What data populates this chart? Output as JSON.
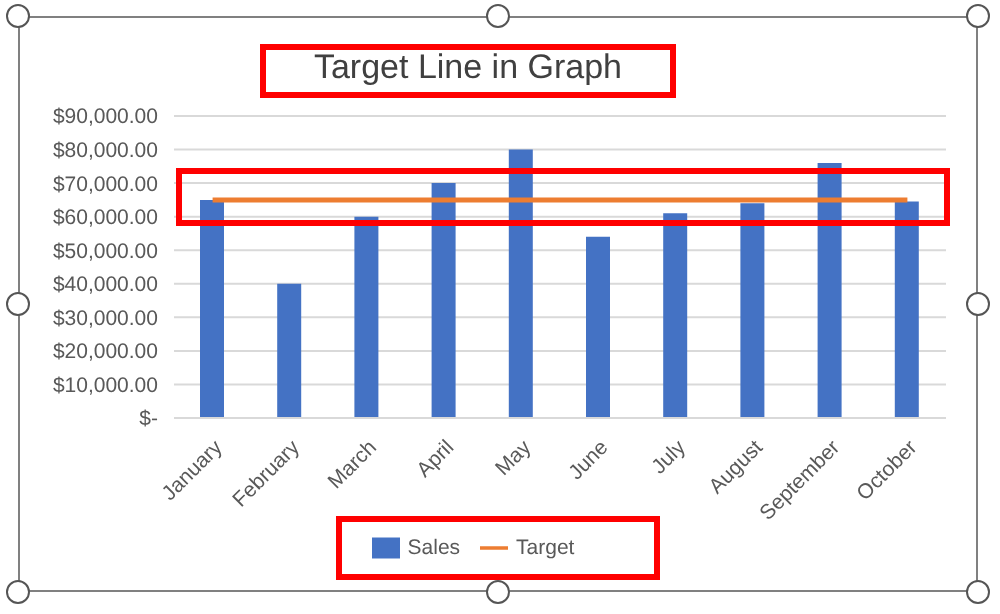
{
  "chart_data": {
    "type": "bar",
    "title": "Target Line in Graph",
    "categories": [
      "January",
      "February",
      "March",
      "April",
      "May",
      "June",
      "July",
      "August",
      "September",
      "October"
    ],
    "series": [
      {
        "name": "Sales",
        "color": "#4472c4",
        "values": [
          65000,
          40000,
          60000,
          70000,
          80000,
          54000,
          61000,
          64000,
          76000,
          64500
        ]
      },
      {
        "name": "Target",
        "type": "line",
        "color": "#ed7d31",
        "values": [
          65000,
          65000,
          65000,
          65000,
          65000,
          65000,
          65000,
          65000,
          65000,
          65000
        ]
      }
    ],
    "ylim": [
      0,
      90000
    ],
    "yticks": [
      {
        "value": 0,
        "label": "$-"
      },
      {
        "value": 10000,
        "label": "$10,000.00"
      },
      {
        "value": 20000,
        "label": "$20,000.00"
      },
      {
        "value": 30000,
        "label": "$30,000.00"
      },
      {
        "value": 40000,
        "label": "$40,000.00"
      },
      {
        "value": 50000,
        "label": "$50,000.00"
      },
      {
        "value": 60000,
        "label": "$60,000.00"
      },
      {
        "value": 70000,
        "label": "$70,000.00"
      },
      {
        "value": 80000,
        "label": "$80,000.00"
      },
      {
        "value": 90000,
        "label": "$90,000.00"
      }
    ],
    "grid": "y",
    "legend": "bottom",
    "marker": "none",
    "line_style": "solid"
  }
}
